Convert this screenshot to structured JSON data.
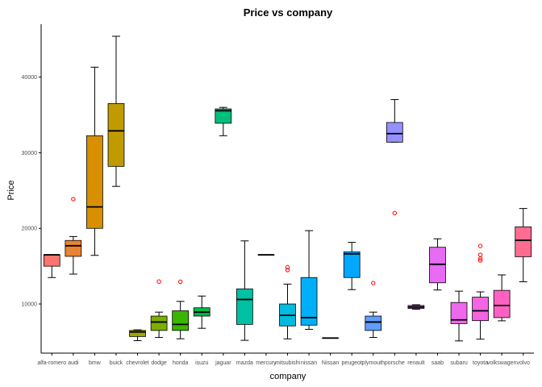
{
  "chart_data": {
    "type": "boxplot",
    "title": "Price vs company",
    "xlabel": "company",
    "ylabel": "Price",
    "ylim": [
      3500,
      47000
    ],
    "yticks": [
      10000,
      20000,
      30000,
      40000
    ],
    "grid": false,
    "legend": "none",
    "outlier_color": "#ff0000",
    "categories": [
      "alfa-romero",
      "audi",
      "bmw",
      "buick",
      "chevrolet",
      "dodge",
      "honda",
      "isuzu",
      "jaguar",
      "mazda",
      "mercury",
      "mitsubishi",
      "nissan",
      "Nissan",
      "peugeot",
      "plymouth",
      "porsche",
      "renault",
      "saab",
      "subaru",
      "toyota",
      "volkswagen",
      "volvo"
    ],
    "boxes": [
      {
        "company": "alfa-romero",
        "color": "#f8766d",
        "min": 13495,
        "q1": 15000,
        "median": 16500,
        "q3": 16500,
        "max": 16500,
        "outliers": []
      },
      {
        "company": "audi",
        "color": "#ea8331",
        "min": 13950,
        "q1": 16300,
        "median": 17700,
        "q3": 18400,
        "max": 18920,
        "outliers": [
          23875
        ]
      },
      {
        "company": "bmw",
        "color": "#d89000",
        "min": 16430,
        "q1": 20000,
        "median": 22835,
        "q3": 32250,
        "max": 41315,
        "outliers": []
      },
      {
        "company": "buick",
        "color": "#c09b00",
        "min": 25552,
        "q1": 28200,
        "median": 32892,
        "q3": 36500,
        "max": 45400,
        "outliers": []
      },
      {
        "company": "chevrolet",
        "color": "#a3a500",
        "min": 5151,
        "q1": 5700,
        "median": 6295,
        "q3": 6500,
        "max": 6575,
        "outliers": []
      },
      {
        "company": "dodge",
        "color": "#7cae00",
        "min": 5572,
        "q1": 6500,
        "median": 7609,
        "q3": 8400,
        "max": 8921,
        "outliers": [
          12964
        ]
      },
      {
        "company": "honda",
        "color": "#39b600",
        "min": 5399,
        "q1": 6500,
        "median": 7295,
        "q3": 9100,
        "max": 10345,
        "outliers": [
          12945
        ]
      },
      {
        "company": "isuzu",
        "color": "#00bb4e",
        "min": 6785,
        "q1": 8400,
        "median": 8916,
        "q3": 9500,
        "max": 11048,
        "outliers": []
      },
      {
        "company": "jaguar",
        "color": "#00bf7d",
        "min": 32250,
        "q1": 33900,
        "median": 35550,
        "q3": 35800,
        "max": 36000,
        "outliers": []
      },
      {
        "company": "mazda",
        "color": "#00c1a3",
        "min": 5195,
        "q1": 7300,
        "median": 10595,
        "q3": 12000,
        "max": 18344,
        "outliers": []
      },
      {
        "company": "mercury",
        "color": "#00bfc4",
        "min": 16503,
        "q1": 16503,
        "median": 16503,
        "q3": 16503,
        "max": 16503,
        "outliers": []
      },
      {
        "company": "mitsubishi",
        "color": "#00bae0",
        "min": 5389,
        "q1": 7100,
        "median": 8500,
        "q3": 10000,
        "max": 12629,
        "outliers": [
          14489,
          14869
        ]
      },
      {
        "company": "nissan",
        "color": "#00b0f6",
        "min": 6649,
        "q1": 7200,
        "median": 8200,
        "q3": 13500,
        "max": 19699,
        "outliers": []
      },
      {
        "company": "Nissan",
        "color": "#35a2ff",
        "min": 5499,
        "q1": 5499,
        "median": 5499,
        "q3": 5499,
        "max": 5499,
        "outliers": []
      },
      {
        "company": "peugeot",
        "color": "#00a9ff",
        "min": 11900,
        "q1": 13500,
        "median": 16630,
        "q3": 16900,
        "max": 18150,
        "outliers": []
      },
      {
        "company": "plymouth",
        "color": "#619cff",
        "min": 5572,
        "q1": 6500,
        "median": 7609,
        "q3": 8400,
        "max": 8921,
        "outliers": [
          12764
        ]
      },
      {
        "company": "porsche",
        "color": "#9590ff",
        "min": 31400,
        "q1": 31400,
        "median": 32528,
        "q3": 34000,
        "max": 37028,
        "outliers": [
          22018
        ]
      },
      {
        "company": "renault",
        "color": "#c77cff",
        "min": 9295,
        "q1": 9400,
        "median": 9595,
        "q3": 9800,
        "max": 9895,
        "outliers": []
      },
      {
        "company": "saab",
        "color": "#e76bf3",
        "min": 11850,
        "q1": 12800,
        "median": 15250,
        "q3": 17500,
        "max": 18620,
        "outliers": []
      },
      {
        "company": "subaru",
        "color": "#ed68ed",
        "min": 5118,
        "q1": 7400,
        "median": 7900,
        "q3": 10200,
        "max": 11694,
        "outliers": []
      },
      {
        "company": "toyota",
        "color": "#f564e3",
        "min": 5348,
        "q1": 7800,
        "median": 9100,
        "q3": 10900,
        "max": 11600,
        "outliers": [
          15750,
          15998,
          16500,
          17669
        ]
      },
      {
        "company": "volkswagen",
        "color": "#ff61c3",
        "min": 7775,
        "q1": 8200,
        "median": 9800,
        "q3": 11800,
        "max": 13845,
        "outliers": []
      },
      {
        "company": "volvo",
        "color": "#ff6c91",
        "min": 12940,
        "q1": 16250,
        "median": 18420,
        "q3": 20200,
        "max": 22625,
        "outliers": []
      }
    ]
  }
}
